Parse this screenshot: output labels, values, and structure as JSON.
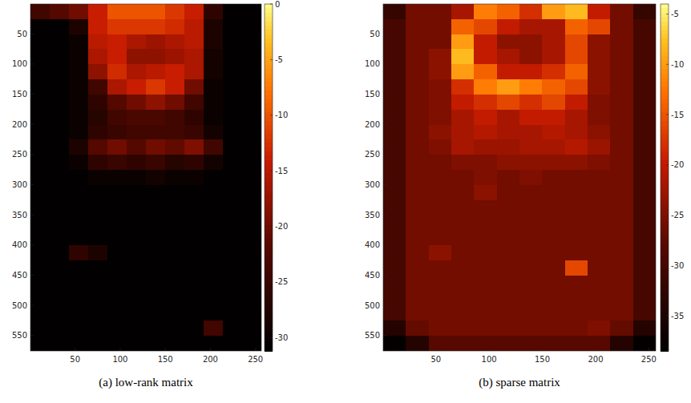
{
  "chart_data": [
    {
      "type": "heatmap",
      "title": "(a) low-rank matrix",
      "xlim": [
        0.5,
        256.5
      ],
      "ylim": [
        0.5,
        575.5
      ],
      "xticks": [
        50,
        100,
        150,
        200,
        250
      ],
      "yticks": [
        50,
        100,
        150,
        200,
        250,
        300,
        350,
        400,
        450,
        500,
        550
      ],
      "colorbar": {
        "range": [
          -31.2,
          0
        ],
        "ticks": [
          0,
          -5,
          -10,
          -15,
          -20,
          -25,
          -30
        ]
      },
      "cells": [
        [
          -24,
          -22,
          -20,
          -14,
          -10,
          -10,
          -10,
          -12,
          -14,
          -26,
          -31,
          -31
        ],
        [
          -31,
          -31,
          -28,
          -14,
          -12,
          -12,
          -12,
          -13,
          -15,
          -28,
          -31,
          -31
        ],
        [
          -31,
          -31,
          -30,
          -15,
          -14,
          -16,
          -17,
          -16,
          -15,
          -28,
          -31,
          -31
        ],
        [
          -31,
          -31,
          -30,
          -16,
          -14,
          -18,
          -18,
          -17,
          -16,
          -29,
          -31,
          -31
        ],
        [
          -31,
          -31,
          -30,
          -18,
          -13,
          -16,
          -15,
          -14,
          -16,
          -29,
          -31,
          -31
        ],
        [
          -31,
          -31,
          -30,
          -24,
          -16,
          -14,
          -12,
          -14,
          -20,
          -30,
          -31,
          -31
        ],
        [
          -31,
          -31,
          -30,
          -26,
          -22,
          -20,
          -18,
          -20,
          -24,
          -30,
          -31,
          -31
        ],
        [
          -31,
          -31,
          -30,
          -27,
          -24,
          -23,
          -23,
          -24,
          -26,
          -30,
          -31,
          -31
        ],
        [
          -31,
          -31,
          -30,
          -26,
          -25,
          -24,
          -24,
          -24,
          -25,
          -29,
          -31,
          -31
        ],
        [
          -31,
          -31,
          -28,
          -22,
          -20,
          -22,
          -20,
          -21,
          -19,
          -24,
          -31,
          -31
        ],
        [
          -31,
          -31,
          -30,
          -26,
          -25,
          -26,
          -25,
          -27,
          -26,
          -29,
          -31,
          -31
        ],
        [
          -31,
          -31,
          -31,
          -30,
          -30,
          -30,
          -29,
          -30,
          -30,
          -31,
          -31,
          -31
        ],
        [
          -31,
          -31,
          -31,
          -31,
          -31,
          -31,
          -31,
          -31,
          -31,
          -31,
          -31,
          -31
        ],
        [
          -31,
          -31,
          -31,
          -31,
          -31,
          -31,
          -31,
          -31,
          -31,
          -31,
          -31,
          -31
        ],
        [
          -31,
          -31,
          -31,
          -31,
          -31,
          -31,
          -31,
          -31,
          -31,
          -31,
          -31,
          -31
        ],
        [
          -31,
          -31,
          -31,
          -31,
          -31,
          -31,
          -31,
          -31,
          -31,
          -31,
          -31,
          -31
        ],
        [
          -31,
          -31,
          -26,
          -28,
          -31,
          -31,
          -31,
          -31,
          -31,
          -31,
          -31,
          -31
        ],
        [
          -31,
          -31,
          -31,
          -31,
          -31,
          -31,
          -31,
          -31,
          -31,
          -31,
          -31,
          -31
        ],
        [
          -31,
          -31,
          -31,
          -31,
          -31,
          -31,
          -31,
          -31,
          -31,
          -31,
          -31,
          -31
        ],
        [
          -31,
          -31,
          -31,
          -31,
          -31,
          -31,
          -31,
          -31,
          -31,
          -31,
          -31,
          -31
        ],
        [
          -31,
          -31,
          -31,
          -31,
          -31,
          -31,
          -31,
          -31,
          -31,
          -31,
          -31,
          -31
        ],
        [
          -31,
          -31,
          -31,
          -31,
          -31,
          -31,
          -31,
          -31,
          -31,
          -24,
          -31,
          -31
        ],
        [
          -31,
          -31,
          -31,
          -31,
          -31,
          -31,
          -31,
          -31,
          -31,
          -31,
          -31,
          -31
        ]
      ]
    },
    {
      "type": "heatmap",
      "title": "(b) sparse matrix",
      "xlim": [
        0.5,
        256.5
      ],
      "ylim": [
        0.5,
        575.5
      ],
      "xticks": [
        50,
        100,
        150,
        200,
        250
      ],
      "yticks": [
        50,
        100,
        150,
        200,
        250,
        300,
        350,
        400,
        450,
        500,
        550
      ],
      "colorbar": {
        "range": [
          -38.5,
          -4
        ],
        "ticks": [
          -5,
          -10,
          -15,
          -20,
          -25,
          -30,
          -35
        ]
      },
      "cells": [
        [
          -32,
          -26,
          -26,
          -22,
          -12,
          -14,
          -18,
          -10,
          -8,
          -20,
          -26,
          -32
        ],
        [
          -30,
          -26,
          -26,
          -14,
          -16,
          -20,
          -22,
          -22,
          -14,
          -16,
          -26,
          -30
        ],
        [
          -30,
          -26,
          -26,
          -10,
          -20,
          -24,
          -24,
          -22,
          -16,
          -24,
          -26,
          -30
        ],
        [
          -30,
          -26,
          -24,
          -8,
          -20,
          -22,
          -24,
          -22,
          -16,
          -24,
          -26,
          -30
        ],
        [
          -30,
          -26,
          -24,
          -10,
          -14,
          -20,
          -20,
          -18,
          -14,
          -24,
          -26,
          -30
        ],
        [
          -30,
          -26,
          -25,
          -18,
          -12,
          -10,
          -12,
          -14,
          -16,
          -24,
          -26,
          -30
        ],
        [
          -30,
          -26,
          -25,
          -20,
          -18,
          -16,
          -18,
          -16,
          -20,
          -25,
          -26,
          -30
        ],
        [
          -30,
          -26,
          -25,
          -22,
          -20,
          -22,
          -20,
          -20,
          -22,
          -25,
          -26,
          -30
        ],
        [
          -30,
          -26,
          -24,
          -22,
          -21,
          -22,
          -22,
          -21,
          -22,
          -24,
          -26,
          -30
        ],
        [
          -30,
          -26,
          -25,
          -22,
          -23,
          -23,
          -22,
          -22,
          -21,
          -23,
          -26,
          -30
        ],
        [
          -30,
          -26,
          -26,
          -25,
          -25,
          -24,
          -24,
          -24,
          -24,
          -25,
          -26,
          -30
        ],
        [
          -30,
          -26,
          -26,
          -26,
          -25,
          -26,
          -25,
          -26,
          -26,
          -26,
          -26,
          -30
        ],
        [
          -30,
          -26,
          -26,
          -26,
          -24,
          -26,
          -26,
          -26,
          -26,
          -26,
          -26,
          -30
        ],
        [
          -30,
          -26,
          -26,
          -26,
          -26,
          -26,
          -26,
          -26,
          -26,
          -26,
          -26,
          -30
        ],
        [
          -30,
          -26,
          -26,
          -26,
          -26,
          -26,
          -26,
          -26,
          -26,
          -26,
          -26,
          -30
        ],
        [
          -30,
          -26,
          -26,
          -26,
          -26,
          -26,
          -26,
          -26,
          -26,
          -26,
          -26,
          -30
        ],
        [
          -30,
          -26,
          -24,
          -26,
          -26,
          -26,
          -26,
          -26,
          -26,
          -26,
          -26,
          -30
        ],
        [
          -30,
          -26,
          -26,
          -26,
          -26,
          -26,
          -26,
          -26,
          -16,
          -26,
          -26,
          -30
        ],
        [
          -30,
          -26,
          -26,
          -26,
          -26,
          -26,
          -26,
          -26,
          -26,
          -26,
          -26,
          -30
        ],
        [
          -30,
          -26,
          -26,
          -26,
          -26,
          -26,
          -26,
          -26,
          -26,
          -26,
          -26,
          -30
        ],
        [
          -30,
          -26,
          -26,
          -26,
          -26,
          -26,
          -26,
          -26,
          -26,
          -26,
          -26,
          -30
        ],
        [
          -34,
          -27,
          -26,
          -26,
          -26,
          -26,
          -26,
          -26,
          -26,
          -25,
          -27,
          -34
        ],
        [
          -38,
          -34,
          -28,
          -28,
          -28,
          -28,
          -28,
          -28,
          -28,
          -28,
          -34,
          -38
        ]
      ]
    }
  ]
}
